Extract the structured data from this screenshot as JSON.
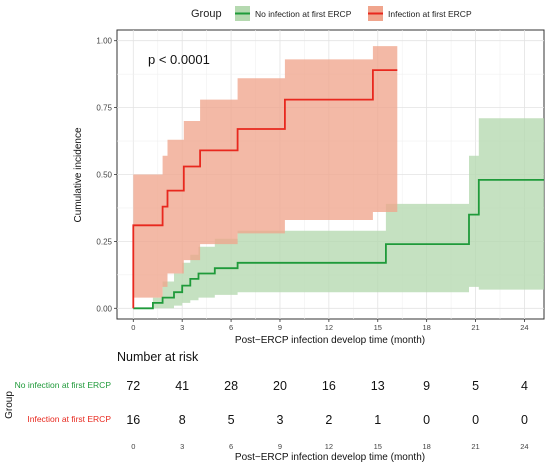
{
  "chart_data": {
    "type": "line",
    "legend": {
      "title": "Group",
      "placement": "top",
      "entries": [
        {
          "name": "No infection at first ERCP",
          "line_color": "#1f9a3a",
          "fill_color": "#b5d9b0"
        },
        {
          "name": "Infection at first ERCP",
          "line_color": "#e8281e",
          "fill_color": "#f0a58d"
        }
      ]
    },
    "annotation": "p < 0.0001",
    "xlabel": "Post−ERCP infection develop time (month)",
    "ylabel": "Cumulative incidence",
    "xlim": [
      -1,
      25.2
    ],
    "ylim": [
      -0.04,
      1.04
    ],
    "xticks": [
      0,
      3,
      6,
      9,
      12,
      15,
      18,
      21,
      24
    ],
    "xtick_labels": [
      "0",
      "3",
      "6",
      "9",
      "12",
      "15",
      "18",
      "21",
      "24"
    ],
    "yticks": [
      0,
      0.25,
      0.5,
      0.75,
      1.0
    ],
    "ytick_labels": [
      "0.00",
      "0.25",
      "0.50",
      "0.75",
      "1.00"
    ],
    "grid": true,
    "series": [
      {
        "name": "No infection at first ERCP",
        "color": "#1f9a3a",
        "band_color": "#b5d9b0",
        "steps": [
          {
            "x": 0,
            "y": 0,
            "lo": 0,
            "hi": 0
          },
          {
            "x": 1.2,
            "y": 0.02,
            "lo": 0,
            "hi": 0.04
          },
          {
            "x": 1.8,
            "y": 0.04,
            "lo": 0,
            "hi": 0.1
          },
          {
            "x": 2.5,
            "y": 0.06,
            "lo": 0.01,
            "hi": 0.13
          },
          {
            "x": 3.0,
            "y": 0.085,
            "lo": 0.02,
            "hi": 0.17
          },
          {
            "x": 3.5,
            "y": 0.11,
            "lo": 0.03,
            "hi": 0.2
          },
          {
            "x": 4.0,
            "y": 0.13,
            "lo": 0.04,
            "hi": 0.23
          },
          {
            "x": 5.0,
            "y": 0.15,
            "lo": 0.05,
            "hi": 0.26
          },
          {
            "x": 6.4,
            "y": 0.17,
            "lo": 0.06,
            "hi": 0.29
          },
          {
            "x": 15.5,
            "y": 0.24,
            "lo": 0.06,
            "hi": 0.39
          },
          {
            "x": 20.6,
            "y": 0.35,
            "lo": 0.08,
            "hi": 0.57
          },
          {
            "x": 21.2,
            "y": 0.48,
            "lo": 0.07,
            "hi": 0.71
          },
          {
            "x": 25.2,
            "y": 0.48,
            "lo": 0.07,
            "hi": 0.71
          }
        ]
      },
      {
        "name": "Infection at first ERCP",
        "color": "#e8281e",
        "band_color": "#f0a58d",
        "steps": [
          {
            "x": 0,
            "y": 0.31,
            "lo": 0.04,
            "hi": 0.5
          },
          {
            "x": 1.8,
            "y": 0.38,
            "lo": 0.08,
            "hi": 0.57
          },
          {
            "x": 2.1,
            "y": 0.44,
            "lo": 0.13,
            "hi": 0.63
          },
          {
            "x": 3.1,
            "y": 0.53,
            "lo": 0.18,
            "hi": 0.7
          },
          {
            "x": 4.1,
            "y": 0.59,
            "lo": 0.24,
            "hi": 0.78
          },
          {
            "x": 6.4,
            "y": 0.67,
            "lo": 0.28,
            "hi": 0.86
          },
          {
            "x": 9.3,
            "y": 0.78,
            "lo": 0.33,
            "hi": 0.93
          },
          {
            "x": 14.7,
            "y": 0.89,
            "lo": 0.36,
            "hi": 0.98
          },
          {
            "x": 16.2,
            "y": 0.89,
            "lo": 0.36,
            "hi": 0.98
          }
        ]
      }
    ],
    "risk_table": {
      "title": "Number at risk",
      "ylabel": "Group",
      "xlabel": "Post−ERCP infection develop time (month)",
      "x": [
        0,
        3,
        6,
        9,
        12,
        15,
        18,
        21,
        24
      ],
      "xtick_labels": [
        "0",
        "3",
        "6",
        "9",
        "12",
        "15",
        "18",
        "21",
        "24"
      ],
      "rows": [
        {
          "label": "No infection at first ERCP",
          "color": "#1f9a3a",
          "values": [
            "72",
            "41",
            "28",
            "20",
            "16",
            "13",
            "9",
            "5",
            "4"
          ]
        },
        {
          "label": "Infection at first ERCP",
          "color": "#e8281e",
          "values": [
            "16",
            "8",
            "5",
            "3",
            "2",
            "1",
            "0",
            "0",
            "0"
          ]
        }
      ]
    }
  }
}
